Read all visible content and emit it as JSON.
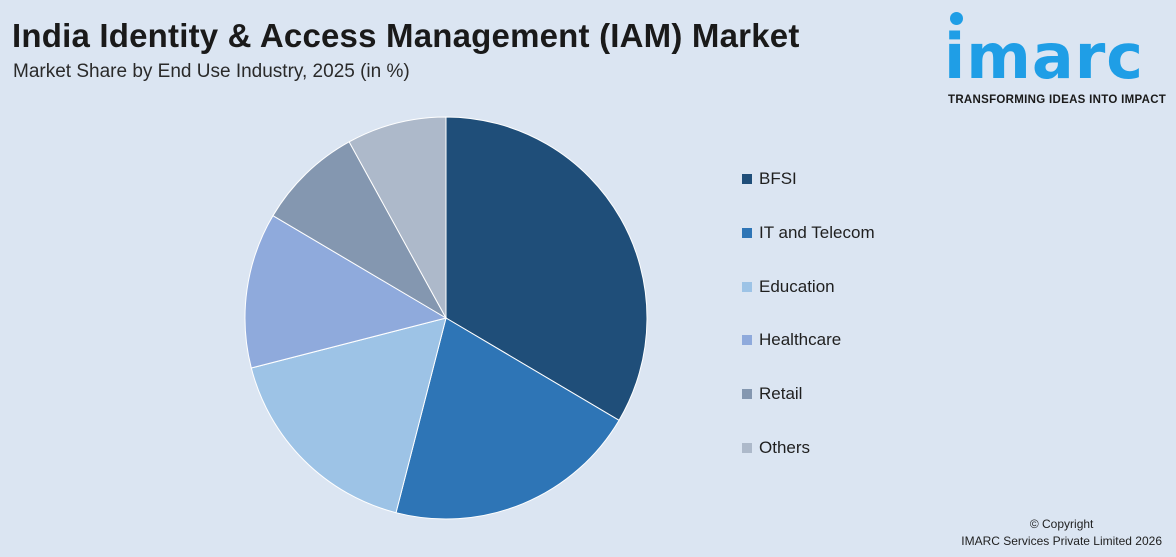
{
  "header": {
    "title": "India Identity & Access Management (IAM) Market",
    "subtitle": "Market Share by End Use Industry, 2025 (in %)"
  },
  "logo": {
    "wordmark": "imarc",
    "tagline": "TRANSFORMING IDEAS INTO IMPACT",
    "color": "#1f9ee6"
  },
  "chart_data": {
    "type": "pie",
    "title": "India Identity & Access Management (IAM) Market",
    "subtitle": "Market Share by End Use Industry, 2025 (in %)",
    "unit": "%",
    "legend_position": "right",
    "start_angle": "12 o'clock",
    "direction": "clockwise",
    "slices": [
      {
        "label": "BFSI",
        "value": 33.5,
        "color": "#1f4e79"
      },
      {
        "label": "IT and Telecom",
        "value": 20.5,
        "color": "#2e75b6"
      },
      {
        "label": "Education",
        "value": 17.0,
        "color": "#9dc3e6"
      },
      {
        "label": "Healthcare",
        "value": 12.5,
        "color": "#8faadc"
      },
      {
        "label": "Retail",
        "value": 8.5,
        "color": "#8497b0"
      },
      {
        "label": "Others",
        "value": 8.0,
        "color": "#adb9ca"
      }
    ]
  },
  "footer": {
    "copyright": "© Copyright",
    "company": "IMARC Services Private Limited 2026"
  }
}
